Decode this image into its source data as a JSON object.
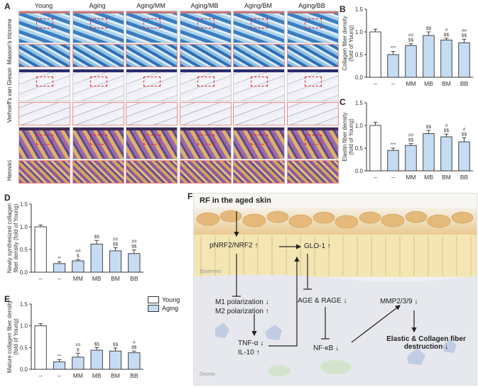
{
  "panels": {
    "A": "A",
    "B": "B",
    "C": "C",
    "D": "D",
    "E": "E",
    "F": "F"
  },
  "histology": {
    "columns": [
      "Young",
      "Aging",
      "Aging/MM",
      "Aging/MB",
      "Aging/BM",
      "Aging/BB"
    ],
    "rows": [
      "Masson's tricrome",
      "Verhoeff's van Gieson",
      "Herovici"
    ]
  },
  "legend": {
    "young": "Young",
    "aging": "Aging"
  },
  "colors": {
    "young_fill": "#ffffff",
    "aging_fill": "#c5dcf3",
    "bar_stroke": "#333333"
  },
  "chart_data": [
    {
      "id": "B",
      "type": "bar",
      "categories": [
        "–",
        "–",
        "MM",
        "MB",
        "BM",
        "BB"
      ],
      "values": [
        1.0,
        0.5,
        0.7,
        0.92,
        0.82,
        0.76
      ],
      "errors": [
        0.06,
        0.07,
        0.04,
        0.08,
        0.04,
        0.08
      ],
      "groups": [
        "young",
        "aging",
        "aging",
        "aging",
        "aging",
        "aging"
      ],
      "ylabel": "Collagen fiber density\n(fold of Young)",
      "ylim": [
        0,
        1.5
      ],
      "yticks": [
        "0.0",
        "0.5",
        "1.0",
        "1.5"
      ],
      "annotations": [
        [],
        [
          "***"
        ],
        [
          "##",
          "$$"
        ],
        [
          "$$"
        ],
        [
          "#",
          "$$"
        ],
        [
          "##",
          "$$"
        ]
      ]
    },
    {
      "id": "C",
      "type": "bar",
      "categories": [
        "–",
        "–",
        "MM",
        "MB",
        "BM",
        "BB"
      ],
      "values": [
        1.0,
        0.45,
        0.56,
        0.82,
        0.75,
        0.64
      ],
      "errors": [
        0.07,
        0.05,
        0.04,
        0.07,
        0.06,
        0.09
      ],
      "groups": [
        "young",
        "aging",
        "aging",
        "aging",
        "aging",
        "aging"
      ],
      "ylabel": "Elastin fiber density\n(fold of Young)",
      "ylim": [
        0,
        1.5
      ],
      "yticks": [
        "0.0",
        "0.5",
        "1.0",
        "1.5"
      ],
      "annotations": [
        [],
        [
          "***"
        ],
        [
          "##",
          "$$"
        ],
        [
          "$$"
        ],
        [
          "#",
          "$$"
        ],
        [
          "#",
          "$$"
        ]
      ]
    },
    {
      "id": "D",
      "type": "bar",
      "categories": [
        "–",
        "–",
        "MM",
        "MB",
        "BM",
        "BB"
      ],
      "values": [
        1.0,
        0.19,
        0.25,
        0.62,
        0.47,
        0.41
      ],
      "errors": [
        0.04,
        0.04,
        0.03,
        0.08,
        0.07,
        0.08
      ],
      "groups": [
        "young",
        "aging",
        "aging",
        "aging",
        "aging",
        "aging"
      ],
      "ylabel": "Newly synthesized collagen\nfiber density (fold of Young)",
      "ylim": [
        0,
        1.5
      ],
      "yticks": [
        "0.0",
        "0.5",
        "1.0",
        "1.5"
      ],
      "annotations": [
        [],
        [
          "**"
        ],
        [
          "##",
          "$"
        ],
        [
          "$$"
        ],
        [
          "##",
          "$$"
        ],
        [
          "##",
          "$$"
        ]
      ]
    },
    {
      "id": "E",
      "type": "bar",
      "categories": [
        "–",
        "–",
        "MM",
        "MB",
        "BM",
        "BB"
      ],
      "values": [
        1.0,
        0.17,
        0.28,
        0.44,
        0.42,
        0.38
      ],
      "errors": [
        0.05,
        0.05,
        0.09,
        0.06,
        0.07,
        0.04
      ],
      "groups": [
        "young",
        "aging",
        "aging",
        "aging",
        "aging",
        "aging"
      ],
      "ylabel": "Mature collagen fiber density\n(fold of Young)",
      "ylim": [
        0,
        1.5
      ],
      "yticks": [
        "0.0",
        "0.5",
        "1.0",
        "1.5"
      ],
      "annotations": [
        [],
        [
          "**"
        ],
        [
          "##",
          "$"
        ],
        [
          "$$"
        ],
        [
          "$$"
        ],
        [
          "#",
          "$$"
        ]
      ]
    }
  ],
  "diagram": {
    "title": "RF in the aged skin",
    "nrf2": "pNRF2/NRF2 ↑",
    "glo1": "GLO-1 ↑",
    "m1": "M1 polarization ↓",
    "m2": "M2 polarization ↑",
    "age": "AGE & RAGE ↓",
    "mmp": "MMP2/3/9 ↓",
    "tnf": "TNF-α ↓",
    "il10": "IL-10 ↑",
    "nfkb": "NF-κB ↓",
    "outcome1": "Elastic & Collagen fiber",
    "outcome2": "destruction ↓",
    "epidermis": "Epidermis",
    "dermis": "Dermis"
  }
}
